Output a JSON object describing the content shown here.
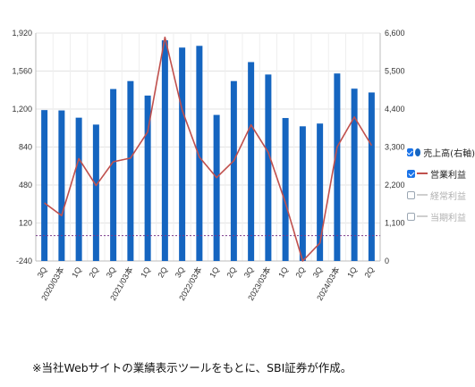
{
  "chart_data": {
    "type": "bar",
    "categories": [
      "3Q",
      "2020/03本",
      "1Q",
      "2Q",
      "3Q",
      "2021/03本",
      "1Q",
      "2Q",
      "3Q",
      "2022/03本",
      "1Q",
      "2Q",
      "3Q",
      "2023/03本",
      "1Q",
      "2Q",
      "3Q",
      "2024/03本",
      "1Q",
      "2Q"
    ],
    "series": [
      {
        "name": "売上高(右軸)",
        "type": "bar",
        "axis": "right",
        "color": "#1565c0",
        "values": [
          4370,
          4360,
          4150,
          3950,
          4980,
          5210,
          4790,
          6390,
          6180,
          6230,
          4230,
          5210,
          5760,
          5400,
          4140,
          3900,
          3980,
          5430,
          4990,
          4880
        ]
      },
      {
        "name": "営業利益",
        "type": "line",
        "axis": "left",
        "color": "#c0504d",
        "values": [
          310,
          190,
          730,
          475,
          700,
          735,
          985,
          1880,
          1190,
          745,
          550,
          710,
          1050,
          790,
          310,
          -240,
          -70,
          840,
          1125,
          855
        ]
      }
    ],
    "y_left": {
      "range": [
        -240,
        1920
      ],
      "ticks": [
        "1,920",
        "1,560",
        "1,200",
        "840",
        "480",
        "120",
        "-240"
      ]
    },
    "y_right": {
      "range": [
        0,
        6600
      ],
      "ticks": [
        "6,600",
        "5,500",
        "4,400",
        "3,300",
        "2,200",
        "1,100",
        "0"
      ]
    },
    "zero_reference_line": {
      "value": 0,
      "axis": "left",
      "color": "#7b3a8c",
      "style": "dotted"
    },
    "grid": true,
    "legend_position": "right"
  },
  "legend": [
    {
      "label": "売上高(右軸)",
      "checked": true,
      "swatch": "dot",
      "color": "#1565c0"
    },
    {
      "label": "営業利益",
      "checked": true,
      "swatch": "line",
      "color": "#c0504d"
    },
    {
      "label": "経常利益",
      "checked": false,
      "swatch": "line",
      "color": "#cfcfcf"
    },
    {
      "label": "当期利益",
      "checked": false,
      "swatch": "line",
      "color": "#cfcfcf"
    }
  ],
  "footnote": "※当社Webサイトの業績表示ツールをもとに、SBI証券が作成。"
}
